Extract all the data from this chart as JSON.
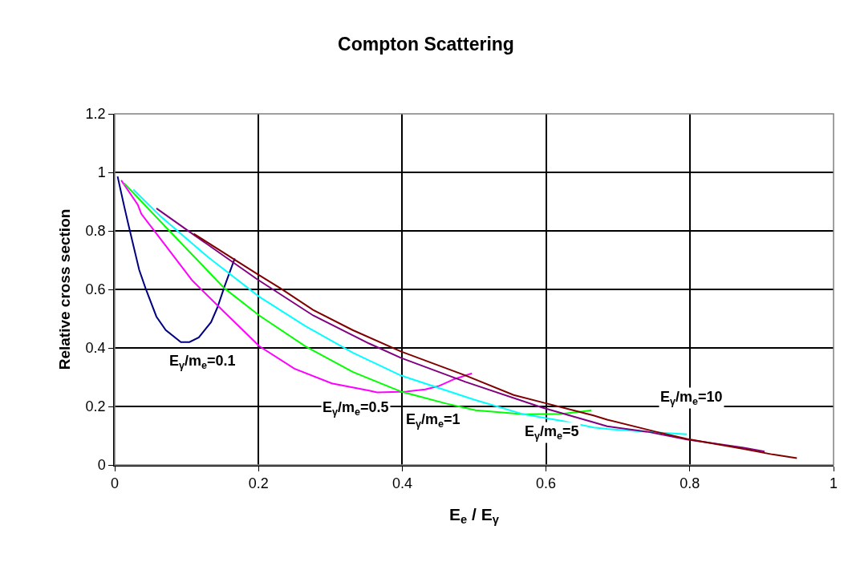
{
  "chart_data": {
    "type": "line",
    "title": "Compton Scattering",
    "xlabel": "E$_{e}$ / E$_{γ}$",
    "ylabel": "Relative cross section",
    "xlim": [
      0,
      1
    ],
    "xticks": [
      0,
      0.2,
      0.4,
      0.6,
      0.8,
      1
    ],
    "ylim": [
      0,
      1.2
    ],
    "yticks": [
      0,
      0.2,
      0.4,
      0.6,
      0.8,
      1,
      1.2
    ],
    "grid": true,
    "marker": "none",
    "line_style": "solid",
    "series": [
      {
        "color": "#000080",
        "x": [
          0.004,
          0.013,
          0.019,
          0.034,
          0.043,
          0.058,
          0.071,
          0.092,
          0.104,
          0.117,
          0.134,
          0.143,
          0.153,
          0.167
        ],
        "values": [
          0.986,
          0.886,
          0.822,
          0.667,
          0.603,
          0.507,
          0.461,
          0.42,
          0.42,
          0.436,
          0.488,
          0.539,
          0.612,
          0.706
        ]
      },
      {
        "color": "#ff00ff",
        "x": [
          0.009,
          0.032,
          0.037,
          0.071,
          0.108,
          0.153,
          0.201,
          0.25,
          0.302,
          0.354,
          0.365,
          0.406,
          0.432,
          0.45,
          0.473,
          0.497
        ],
        "values": [
          0.973,
          0.89,
          0.858,
          0.749,
          0.63,
          0.521,
          0.406,
          0.329,
          0.279,
          0.254,
          0.248,
          0.251,
          0.258,
          0.269,
          0.294,
          0.313
        ]
      },
      {
        "color": "#00ff00",
        "x": [
          0.013,
          0.071,
          0.153,
          0.201,
          0.265,
          0.331,
          0.361,
          0.398,
          0.461,
          0.502,
          0.569,
          0.622,
          0.651,
          0.663
        ],
        "values": [
          0.963,
          0.813,
          0.603,
          0.511,
          0.406,
          0.318,
          0.288,
          0.251,
          0.21,
          0.187,
          0.173,
          0.175,
          0.183,
          0.187
        ]
      },
      {
        "color": "#00ffff",
        "x": [
          0.026,
          0.064,
          0.131,
          0.201,
          0.265,
          0.331,
          0.398,
          0.499,
          0.569,
          0.622,
          0.666,
          0.685,
          0.759,
          0.796
        ],
        "values": [
          0.941,
          0.849,
          0.708,
          0.575,
          0.475,
          0.384,
          0.306,
          0.224,
          0.173,
          0.151,
          0.128,
          0.123,
          0.11,
          0.105
        ]
      },
      {
        "color": "#800080",
        "x": [
          0.058,
          0.108,
          0.198,
          0.276,
          0.354,
          0.398,
          0.488,
          0.595,
          0.666,
          0.685,
          0.74,
          0.796,
          0.875,
          0.904
        ],
        "values": [
          0.877,
          0.79,
          0.635,
          0.511,
          0.415,
          0.366,
          0.284,
          0.196,
          0.146,
          0.132,
          0.114,
          0.087,
          0.059,
          0.046
        ]
      },
      {
        "color": "#800000",
        "x": [
          0.11,
          0.198,
          0.231,
          0.276,
          0.331,
          0.398,
          0.488,
          0.555,
          0.598,
          0.666,
          0.685,
          0.752,
          0.796,
          0.875,
          0.915,
          0.949
        ],
        "values": [
          0.79,
          0.653,
          0.603,
          0.53,
          0.461,
          0.388,
          0.306,
          0.239,
          0.212,
          0.169,
          0.155,
          0.114,
          0.089,
          0.055,
          0.036,
          0.023
        ]
      }
    ],
    "annotations": [
      "E$_{γ}$/m$_{e}$=0.1",
      "E$_{γ}$/m$_{e}$=0.5",
      "E$_{γ}$/m$_{e}$=1",
      "E$_{γ}$/m$_{e}$=5",
      "E$_{γ}$/m$_{e}$=10"
    ]
  }
}
